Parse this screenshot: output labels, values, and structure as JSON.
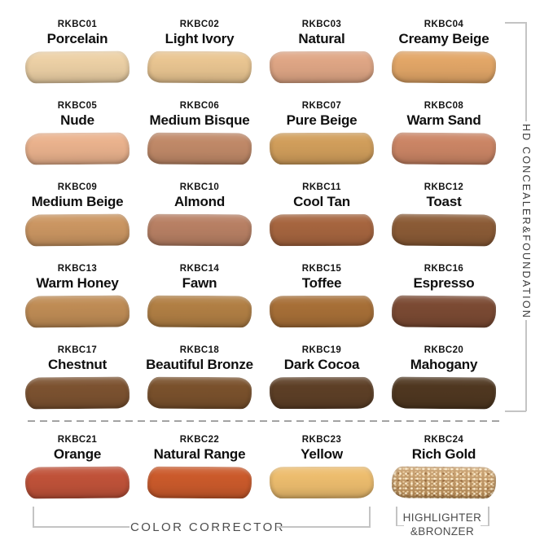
{
  "groups": {
    "main_label": "HD CONCEALER&FOUNDATION",
    "color_corrector_label": "COLOR CORRECTOR",
    "highlighter_label_line1": "HIGHLIGHTER",
    "highlighter_label_line2": "&BRONZER"
  },
  "colors": {
    "bracket_line": "#c4c4c4",
    "dashed_line": "#a3a3a3",
    "footer_text": "#4d4d4d",
    "vertical_text": "#3c3c3c",
    "shade_text": "#111111"
  },
  "shades": [
    {
      "code": "RKBC01",
      "name": "Porcelain",
      "color": "#ecd0a5",
      "finish": "matte"
    },
    {
      "code": "RKBC02",
      "name": "Light Ivory",
      "color": "#e9c591",
      "finish": "matte"
    },
    {
      "code": "RKBC03",
      "name": "Natural",
      "color": "#dfa685",
      "finish": "matte"
    },
    {
      "code": "RKBC04",
      "name": "Creamy Beige",
      "color": "#e2a667",
      "finish": "matte"
    },
    {
      "code": "RKBC05",
      "name": "Nude",
      "color": "#eab28d",
      "finish": "matte"
    },
    {
      "code": "RKBC06",
      "name": "Medium Bisque",
      "color": "#c08968",
      "finish": "matte"
    },
    {
      "code": "RKBC07",
      "name": "Pure Beige",
      "color": "#d19e5b",
      "finish": "matte"
    },
    {
      "code": "RKBC08",
      "name": "Warm Sand",
      "color": "#cb8565",
      "finish": "matte"
    },
    {
      "code": "RKBC09",
      "name": "Medium Beige",
      "color": "#cb9662",
      "finish": "matte"
    },
    {
      "code": "RKBC10",
      "name": "Almond",
      "color": "#b88064",
      "finish": "matte"
    },
    {
      "code": "RKBC11",
      "name": "Cool Tan",
      "color": "#a6653f",
      "finish": "matte"
    },
    {
      "code": "RKBC12",
      "name": "Toast",
      "color": "#8b5b36",
      "finish": "matte"
    },
    {
      "code": "RKBC13",
      "name": "Warm Honey",
      "color": "#bf8c55",
      "finish": "matte"
    },
    {
      "code": "RKBC14",
      "name": "Fawn",
      "color": "#b17f44",
      "finish": "matte"
    },
    {
      "code": "RKBC15",
      "name": "Toffee",
      "color": "#a76f37",
      "finish": "matte"
    },
    {
      "code": "RKBC16",
      "name": "Espresso",
      "color": "#7b4a33",
      "finish": "matte"
    },
    {
      "code": "RKBC17",
      "name": "Chestnut",
      "color": "#7c5230",
      "finish": "matte"
    },
    {
      "code": "RKBC18",
      "name": "Beautiful Bronze",
      "color": "#7a512c",
      "finish": "matte"
    },
    {
      "code": "RKBC19",
      "name": "Dark Cocoa",
      "color": "#5d3f26",
      "finish": "matte"
    },
    {
      "code": "RKBC20",
      "name": "Mahogany",
      "color": "#4f3720",
      "finish": "matte"
    },
    {
      "code": "RKBC21",
      "name": "Orange",
      "color": "#c05239",
      "finish": "matte"
    },
    {
      "code": "RKBC22",
      "name": "Natural Range",
      "color": "#cb5a2b",
      "finish": "matte"
    },
    {
      "code": "RKBC23",
      "name": "Yellow",
      "color": "#edbd6e",
      "finish": "matte"
    },
    {
      "code": "RKBC24",
      "name": "Rich Gold",
      "color": "#c2935a",
      "finish": "shimmer"
    }
  ]
}
